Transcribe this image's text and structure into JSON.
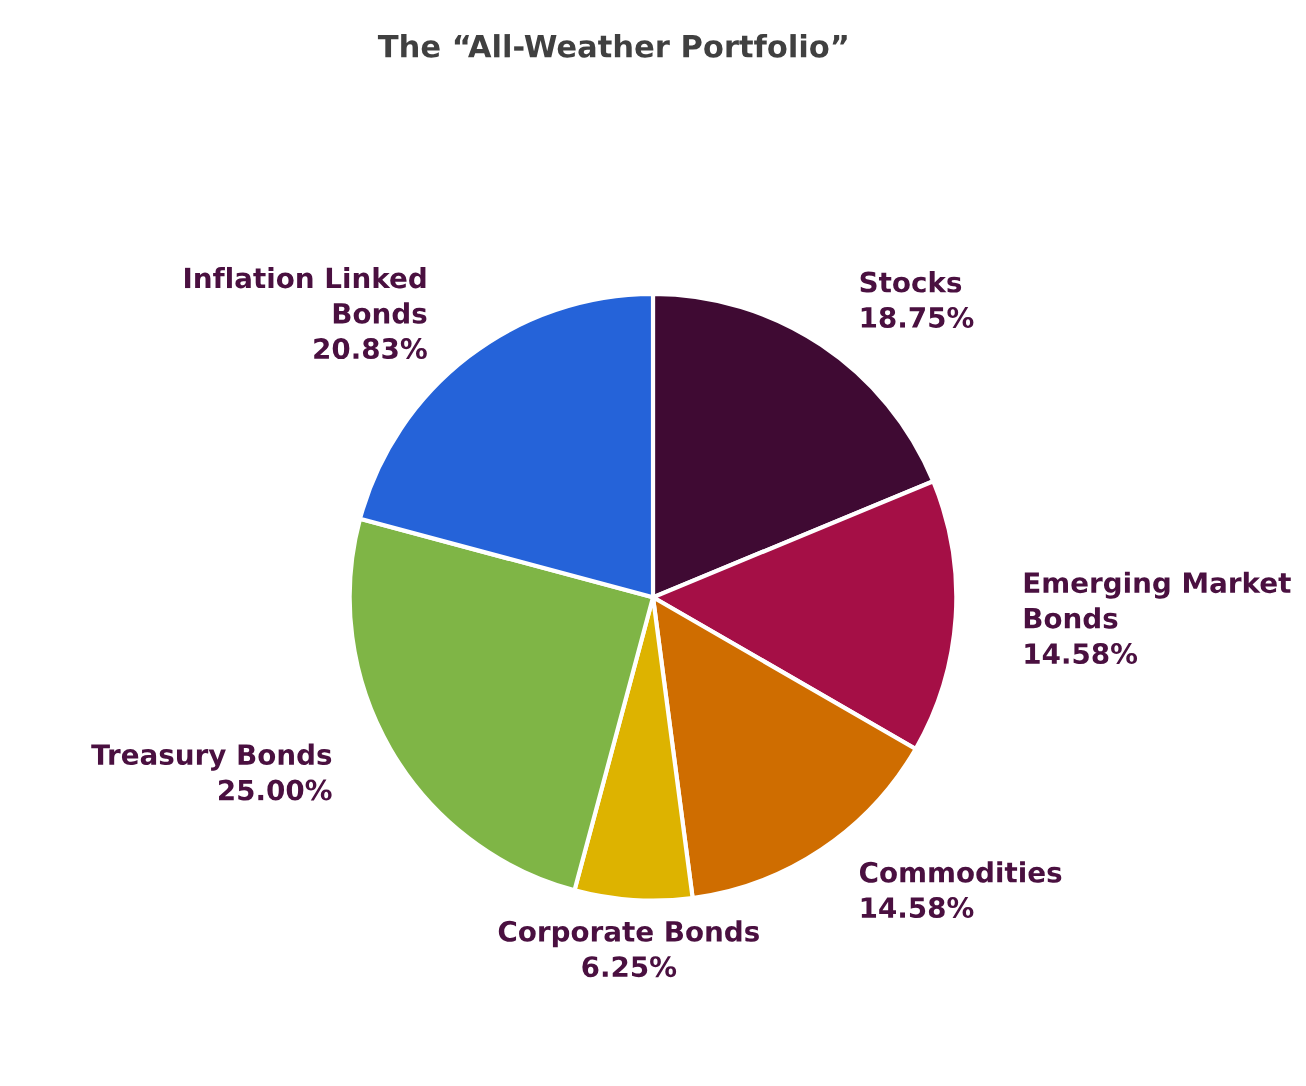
{
  "chart_data": {
    "type": "pie",
    "title": "The “All-Weather Portfolio”",
    "categories": [
      "Stocks",
      "Emerging Market Bonds",
      "Commodities",
      "Corporate Bonds",
      "Treasury Bonds",
      "Inflation Linked Bonds"
    ],
    "values": [
      18.75,
      14.58,
      14.58,
      6.25,
      25.0,
      20.83
    ],
    "value_labels": [
      "18.75%",
      "14.58%",
      "14.58%",
      "6.25%",
      "25.00%",
      "20.83%"
    ],
    "colors": [
      "#3f0a33",
      "#a50f46",
      "#cf6d00",
      "#ddb300",
      "#7fb546",
      "#2563d9"
    ],
    "legend": false
  }
}
